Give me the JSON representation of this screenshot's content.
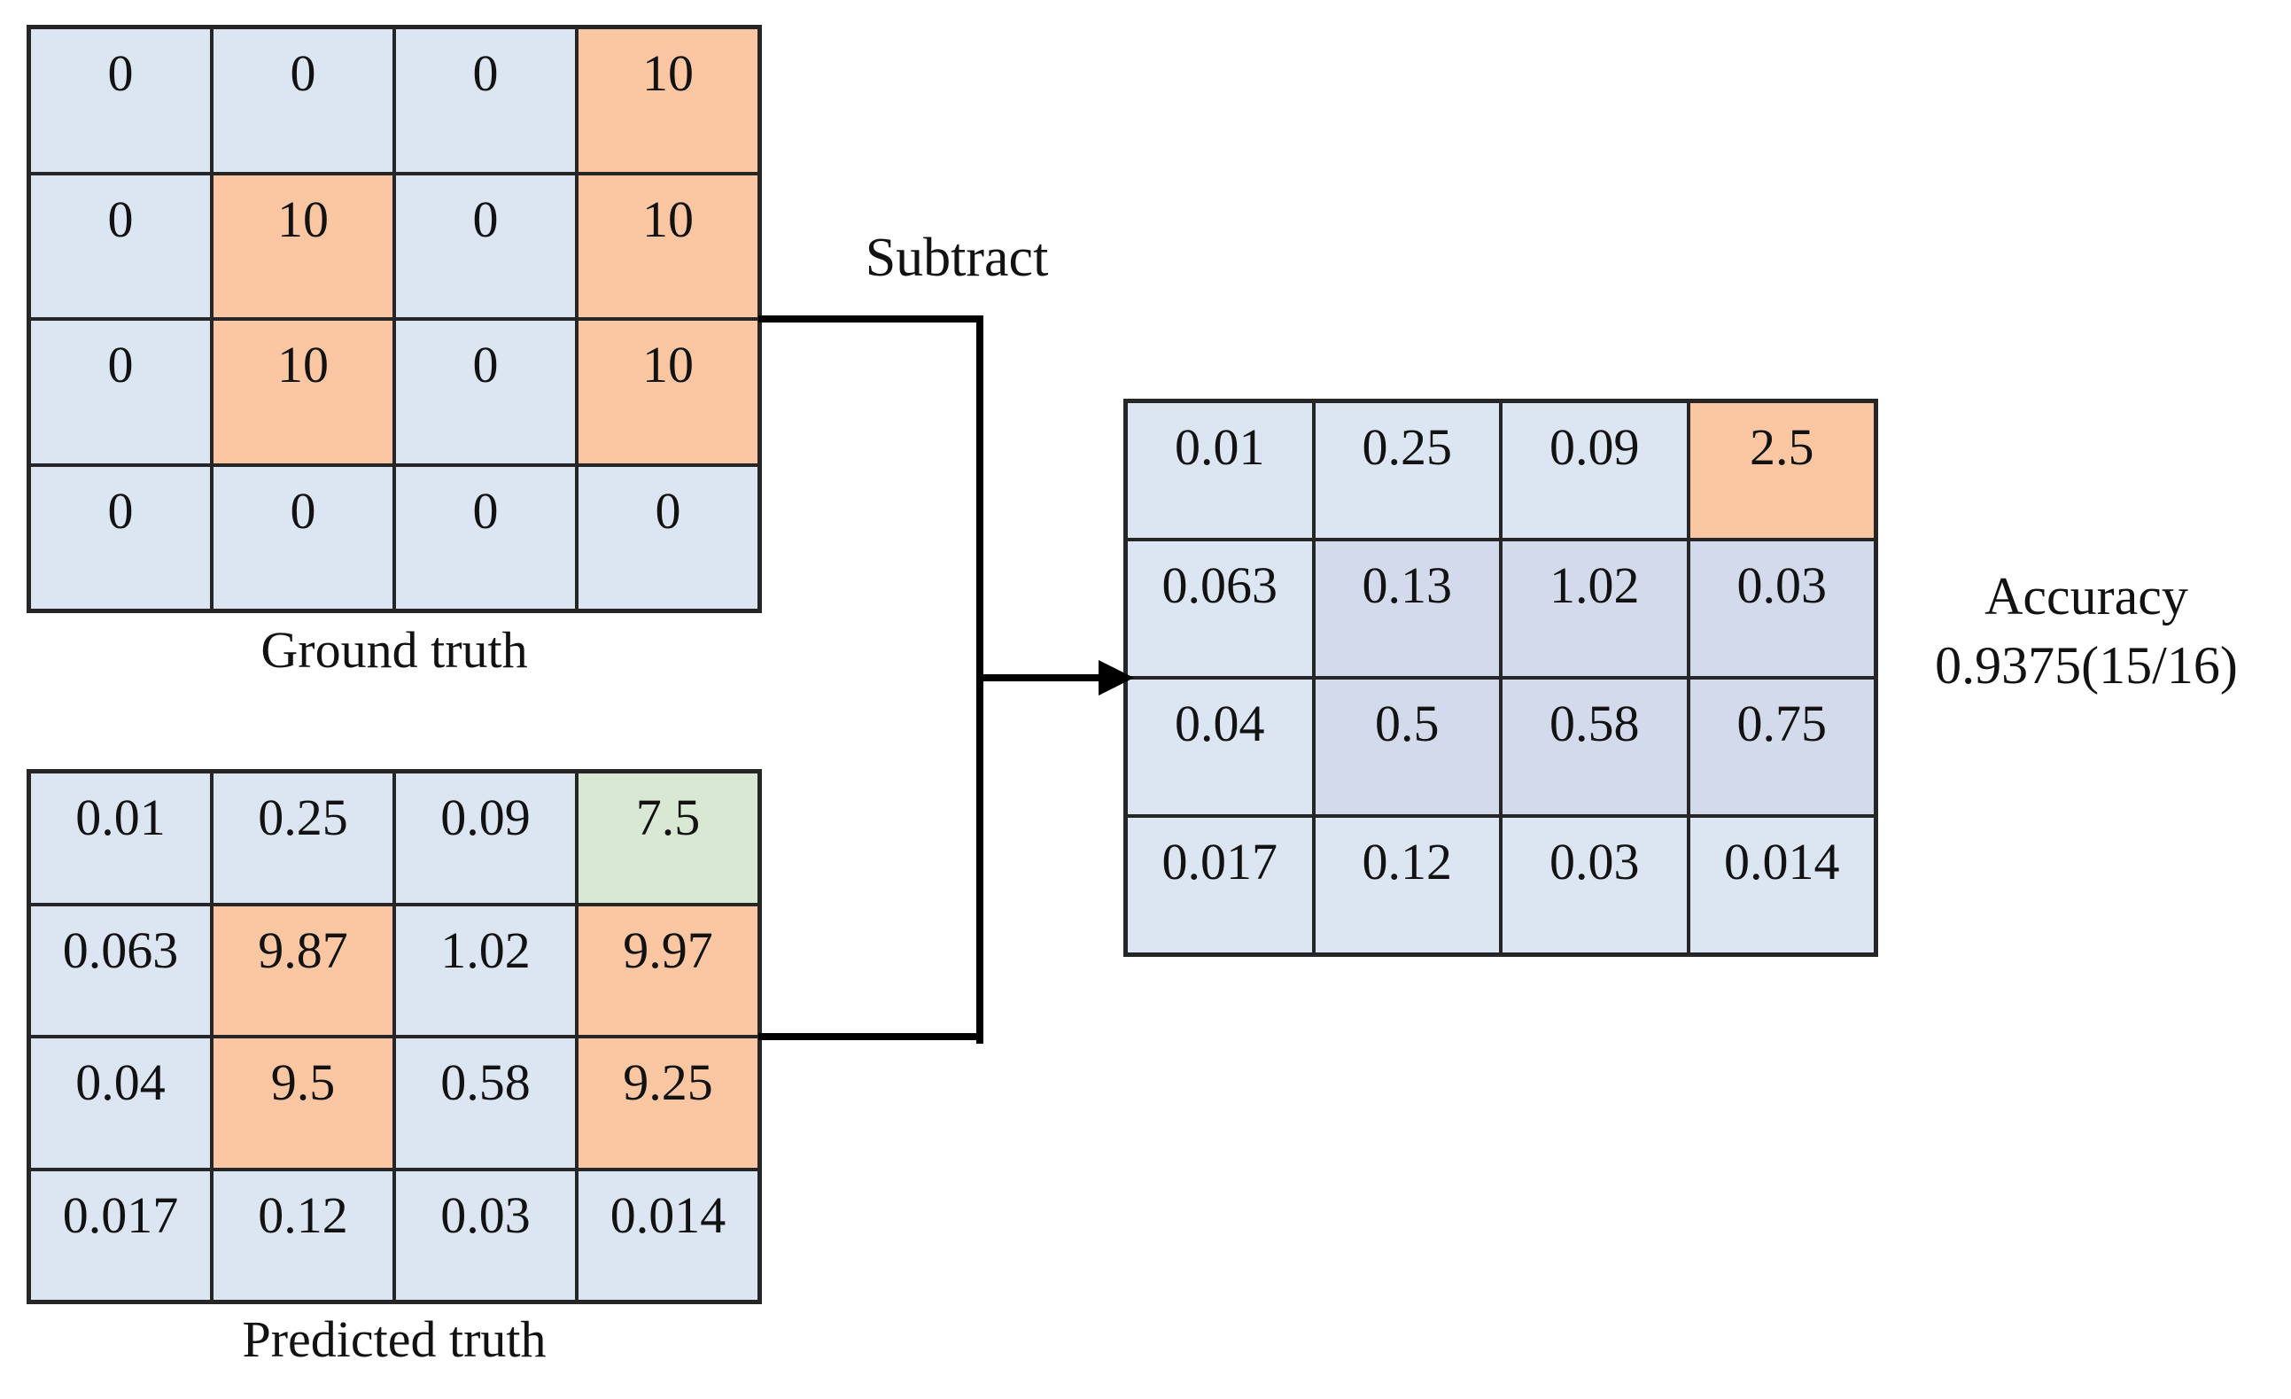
{
  "labels": {
    "subtract": "Subtract",
    "accuracy_line1": "Accuracy",
    "accuracy_line2": "0.9375(15/16)"
  },
  "colors": {
    "blue": "#dbe6f2",
    "orange": "#fac7a2",
    "green": "#d9e8d3",
    "lavender": "#d2daeb",
    "grid": "#262626",
    "arrow": "#000000",
    "text": "#121212"
  },
  "matrices": {
    "ground_truth": {
      "label": "Ground truth",
      "cells": [
        [
          {
            "value": "0",
            "color": "blue"
          },
          {
            "value": "0",
            "color": "blue"
          },
          {
            "value": "0",
            "color": "blue"
          },
          {
            "value": "10",
            "color": "orange"
          }
        ],
        [
          {
            "value": "0",
            "color": "blue"
          },
          {
            "value": "10",
            "color": "orange"
          },
          {
            "value": "0",
            "color": "blue"
          },
          {
            "value": "10",
            "color": "orange"
          }
        ],
        [
          {
            "value": "0",
            "color": "blue"
          },
          {
            "value": "10",
            "color": "orange"
          },
          {
            "value": "0",
            "color": "blue"
          },
          {
            "value": "10",
            "color": "orange"
          }
        ],
        [
          {
            "value": "0",
            "color": "blue"
          },
          {
            "value": "0",
            "color": "blue"
          },
          {
            "value": "0",
            "color": "blue"
          },
          {
            "value": "0",
            "color": "blue"
          }
        ]
      ]
    },
    "predicted_truth": {
      "label": "Predicted truth",
      "cells": [
        [
          {
            "value": "0.01",
            "color": "blue"
          },
          {
            "value": "0.25",
            "color": "blue"
          },
          {
            "value": "0.09",
            "color": "blue"
          },
          {
            "value": "7.5",
            "color": "green"
          }
        ],
        [
          {
            "value": "0.063",
            "color": "blue"
          },
          {
            "value": "9.87",
            "color": "orange"
          },
          {
            "value": "1.02",
            "color": "blue"
          },
          {
            "value": "9.97",
            "color": "orange"
          }
        ],
        [
          {
            "value": "0.04",
            "color": "blue"
          },
          {
            "value": "9.5",
            "color": "orange"
          },
          {
            "value": "0.58",
            "color": "blue"
          },
          {
            "value": "9.25",
            "color": "orange"
          }
        ],
        [
          {
            "value": "0.017",
            "color": "blue"
          },
          {
            "value": "0.12",
            "color": "blue"
          },
          {
            "value": "0.03",
            "color": "blue"
          },
          {
            "value": "0.014",
            "color": "blue"
          }
        ]
      ]
    },
    "result": {
      "cells": [
        [
          {
            "value": "0.01",
            "color": "blue"
          },
          {
            "value": "0.25",
            "color": "blue"
          },
          {
            "value": "0.09",
            "color": "blue"
          },
          {
            "value": "2.5",
            "color": "orange"
          }
        ],
        [
          {
            "value": "0.063",
            "color": "blue"
          },
          {
            "value": "0.13",
            "color": "lavender"
          },
          {
            "value": "1.02",
            "color": "lavender"
          },
          {
            "value": "0.03",
            "color": "lavender"
          }
        ],
        [
          {
            "value": "0.04",
            "color": "blue"
          },
          {
            "value": "0.5",
            "color": "lavender"
          },
          {
            "value": "0.58",
            "color": "lavender"
          },
          {
            "value": "0.75",
            "color": "lavender"
          }
        ],
        [
          {
            "value": "0.017",
            "color": "blue"
          },
          {
            "value": "0.12",
            "color": "blue"
          },
          {
            "value": "0.03",
            "color": "blue"
          },
          {
            "value": "0.014",
            "color": "blue"
          }
        ]
      ]
    }
  }
}
